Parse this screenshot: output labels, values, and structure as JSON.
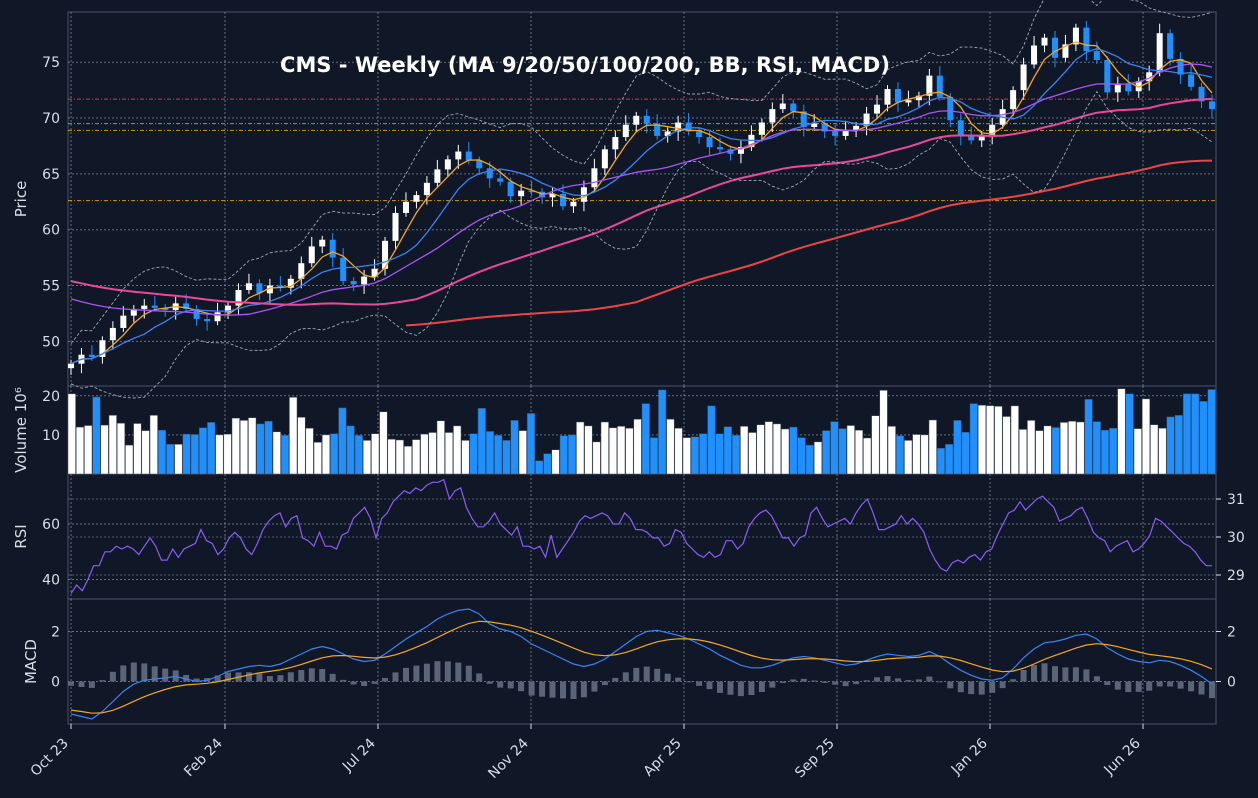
{
  "chart_data": {
    "type": "candlestick",
    "title": "CMS  -  Weekly  (MA 9/20/50/100/200, BB, RSI, MACD)",
    "x_tick_labels": [
      "Oct 23",
      "Feb 24",
      "Jul 24",
      "Nov 24",
      "Apr 25",
      "Sep 25",
      "Jan 26",
      "Jun 26"
    ],
    "colors": {
      "up": "#ffffff",
      "down": "#1e90ff",
      "background": "#101828",
      "grid": "#8a94a6",
      "border": "#4a5568"
    },
    "price": {
      "ylabel": "Price",
      "ylim": [
        46.0,
        79.5
      ],
      "ticks": [
        50,
        55,
        60,
        65,
        70,
        75
      ],
      "close_approx": [
        48.0,
        48.8,
        48.6,
        50.1,
        51.2,
        52.3,
        52.9,
        53.2,
        53.0,
        52.8,
        53.4,
        52.9,
        52.0,
        51.8,
        52.6,
        53.2,
        54.6,
        55.2,
        54.3,
        55.0,
        54.8,
        55.6,
        57.0,
        58.5,
        59.1,
        57.5,
        55.4,
        55.1,
        55.8,
        56.5,
        59.0,
        61.5,
        62.5,
        63.1,
        64.2,
        65.4,
        66.3,
        67.0,
        66.2,
        65.5,
        64.6,
        64.3,
        63.0,
        63.5,
        63.4,
        62.9,
        63.2,
        62.1,
        62.5,
        63.8,
        65.5,
        67.2,
        68.3,
        69.4,
        70.2,
        69.5,
        68.4,
        68.8,
        69.6,
        68.8,
        68.3,
        67.4,
        67.2,
        66.8,
        67.4,
        68.5,
        69.6,
        70.8,
        71.3,
        70.6,
        69.2,
        69.5,
        68.8,
        68.4,
        68.9,
        69.3,
        70.4,
        71.2,
        72.6,
        71.4,
        71.6,
        72.0,
        73.8,
        71.9,
        69.8,
        68.4,
        68.0,
        68.5,
        69.4,
        70.8,
        72.5,
        74.8,
        76.5,
        77.2,
        75.4,
        76.6,
        78.1,
        76.0,
        75.2,
        72.3,
        73.1,
        72.4,
        73.3,
        74.1,
        77.6,
        75.3,
        73.9,
        72.8,
        71.5,
        70.8
      ],
      "moving_averages": [
        {
          "period": 9,
          "color": "#f5a623"
        },
        {
          "period": 20,
          "color": "#3b82f6"
        },
        {
          "period": 50,
          "color": "#a855f7"
        },
        {
          "period": 100,
          "color": "#ec4899"
        },
        {
          "period": 200,
          "color": "#ef4444"
        }
      ],
      "bollinger": {
        "period": 20,
        "std": 2,
        "color": "#a0a8b8"
      },
      "levels": [
        {
          "value": 71.7,
          "color": "#ef4444"
        },
        {
          "value": 69.5,
          "color": "#4ade80"
        },
        {
          "value": 68.9,
          "color": "#eab308"
        },
        {
          "value": 62.6,
          "color": "#eab308"
        }
      ]
    },
    "volume": {
      "ylabel": "Volume  10⁶",
      "ylim": [
        0,
        22.5
      ],
      "ticks": [
        10,
        20
      ],
      "values_approx": [
        20.5,
        12.0,
        12.4,
        19.7,
        12.5,
        15.0,
        13.0,
        7.4,
        12.9,
        11.1,
        15.0,
        11.2,
        7.6,
        7.6,
        10.2,
        10.1,
        11.8,
        13.2,
        10.0,
        10.2,
        14.3,
        13.7,
        14.4,
        12.8,
        13.5,
        10.8,
        9.9,
        19.6,
        14.5,
        11.7,
        8.1,
        10.0,
        10.3,
        16.9,
        12.3,
        9.9,
        8.6,
        10.3,
        15.9,
        8.9,
        8.7,
        7.1,
        8.8,
        10.2,
        10.6,
        13.6,
        10.6,
        12.3,
        8.6,
        10.3,
        16.8,
        10.9,
        9.9,
        8.6,
        13.7,
        11.1,
        15.5,
        3.4,
        5.2,
        6.2,
        9.8,
        10.0,
        13.3,
        12.3,
        8.2,
        13.3,
        11.8,
        12.2,
        11.7,
        14.0,
        18.0,
        9.3,
        21.5,
        14.0,
        11.7,
        9.3,
        9.5,
        10.3,
        17.4,
        10.3,
        12.1,
        9.9,
        12.2,
        10.6,
        12.6,
        13.4,
        12.8,
        11.5,
        12.0,
        9.3,
        7.4,
        8.2,
        11.1,
        13.4,
        11.6,
        12.4,
        11.2,
        9.2,
        14.9,
        21.4,
        12.2,
        9.8,
        8.6,
        10.1,
        10.0,
        13.8,
        6.6,
        7.6,
        13.7,
        10.7,
        18.0,
        17.6,
        17.5,
        17.3,
        14.7,
        17.4,
        11.4,
        13.7,
        11.1,
        12.3,
        11.9,
        13.2,
        13.5,
        13.3,
        19.1,
        13.4,
        11.2,
        11.7,
        21.8,
        20.5,
        11.6,
        19.2,
        12.6,
        11.7,
        14.6,
        15.0,
        20.5,
        20.5,
        18.6,
        21.6
      ]
    },
    "rsi": {
      "ylabel": "RSI",
      "ylim": [
        33,
        78
      ],
      "ticks": [
        40,
        60
      ],
      "right_ticks": [
        "31",
        "30",
        "29"
      ],
      "color": "#8b5cf6",
      "values_approx": [
        35,
        38,
        36,
        40,
        45,
        45,
        50,
        50,
        52,
        51,
        52,
        51,
        49,
        52,
        55,
        52,
        47,
        47,
        51,
        48,
        51,
        52,
        53,
        58,
        54,
        53,
        49,
        51,
        55,
        57,
        55,
        51,
        49,
        53,
        58,
        61,
        63,
        64,
        59,
        62,
        63,
        55,
        54,
        52,
        57,
        52,
        52,
        51,
        56,
        57,
        62,
        64,
        66,
        62,
        55,
        62,
        64,
        68,
        70,
        72,
        71,
        73,
        72,
        74,
        75,
        75,
        76,
        69,
        72,
        73,
        66,
        62,
        59,
        59,
        61,
        64,
        60,
        58,
        56,
        59,
        52,
        52,
        51,
        52,
        48,
        56,
        48,
        51,
        54,
        57,
        61,
        63,
        62,
        63,
        64,
        63,
        60,
        60,
        64,
        62,
        58,
        58,
        57,
        55,
        55,
        52,
        53,
        58,
        57,
        53,
        51,
        49,
        48,
        50,
        48,
        49,
        54,
        54,
        51,
        53,
        59,
        62,
        64,
        65,
        63,
        59,
        55,
        55,
        52,
        55,
        56,
        64,
        66,
        62,
        59,
        60,
        61,
        62,
        60,
        64,
        67,
        69,
        64,
        58,
        58,
        59,
        60,
        63,
        60,
        62,
        60,
        57,
        51,
        47,
        44,
        43,
        46,
        47,
        46,
        48,
        49,
        47,
        50,
        51,
        56,
        60,
        64,
        65,
        68,
        65,
        67,
        69,
        70,
        68,
        66,
        61,
        62,
        63,
        65,
        66,
        62,
        57,
        55,
        54,
        50,
        52,
        53,
        54,
        50,
        51,
        53,
        56,
        62,
        61,
        59,
        57,
        55,
        53,
        52,
        50,
        47,
        45,
        45
      ]
    },
    "macd": {
      "ylabel": "MACD",
      "ylim": [
        -1.7,
        3.3
      ],
      "ticks": [
        0,
        2
      ],
      "right_ticks": [
        "2",
        "0"
      ],
      "colors": {
        "macd": "#3b82f6",
        "signal": "#f5a623",
        "histogram": "#5a6578"
      },
      "macd_approx": [
        -1.3,
        -1.4,
        -1.5,
        -1.2,
        -0.8,
        -0.4,
        -0.1,
        0.05,
        0.1,
        0.15,
        0.2,
        0.1,
        0.0,
        0.05,
        0.2,
        0.4,
        0.5,
        0.6,
        0.65,
        0.6,
        0.7,
        0.9,
        1.1,
        1.3,
        1.4,
        1.3,
        1.1,
        0.9,
        0.8,
        0.85,
        1.1,
        1.4,
        1.7,
        1.95,
        2.2,
        2.5,
        2.7,
        2.85,
        2.9,
        2.7,
        2.3,
        2.1,
        2.0,
        1.8,
        1.5,
        1.3,
        1.1,
        0.9,
        0.7,
        0.6,
        0.7,
        0.9,
        1.2,
        1.5,
        1.8,
        2.0,
        2.05,
        1.95,
        1.85,
        1.7,
        1.5,
        1.3,
        1.05,
        0.85,
        0.65,
        0.55,
        0.55,
        0.65,
        0.8,
        0.95,
        1.0,
        0.95,
        0.85,
        0.75,
        0.65,
        0.7,
        0.85,
        1.0,
        1.1,
        1.05,
        1.0,
        1.05,
        1.2,
        1.0,
        0.7,
        0.45,
        0.25,
        0.1,
        0.05,
        0.15,
        0.5,
        0.95,
        1.3,
        1.55,
        1.6,
        1.7,
        1.85,
        1.9,
        1.7,
        1.35,
        1.1,
        0.9,
        0.8,
        0.75,
        0.85,
        0.8,
        0.65,
        0.45,
        0.2,
        -0.1
      ]
    }
  }
}
